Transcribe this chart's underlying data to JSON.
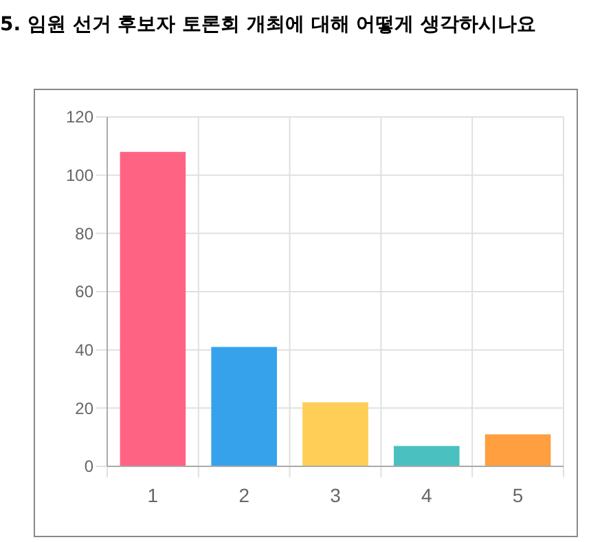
{
  "chart_data": {
    "type": "bar",
    "title": "5. 임원 선거 후보자 토론회 개최에 대해 어떻게 생각하시나요",
    "categories": [
      "1",
      "2",
      "3",
      "4",
      "5"
    ],
    "values": [
      108,
      41,
      22,
      7,
      11
    ],
    "colors": [
      "#ff6384",
      "#36a2eb",
      "#ffce56",
      "#4bc0c0",
      "#ff9f40"
    ],
    "ylim": [
      0,
      120
    ],
    "yticks": [
      0,
      20,
      40,
      60,
      80,
      100,
      120
    ],
    "grid": true
  }
}
